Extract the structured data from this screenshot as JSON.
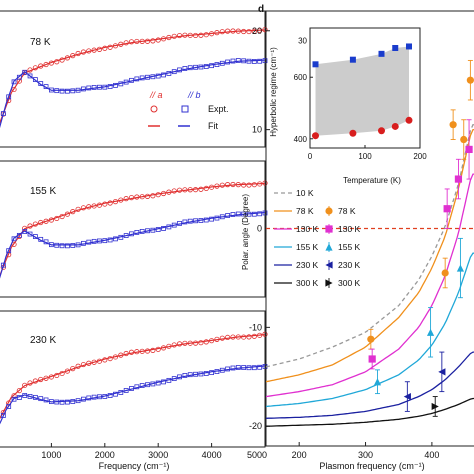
{
  "panel_d_label": "d",
  "chart_data": [
    {
      "type": "scatter",
      "panel": "left-top",
      "temperature_label": "78 K",
      "xlim": [
        0,
        5000
      ],
      "legend": {
        "a_label": "// a",
        "b_label": "// b",
        "expt_label": "Expt.",
        "fit_label": "Fit"
      },
      "series": [
        {
          "name": "// a",
          "color": "#e03030",
          "x": [
            0,
            250,
            500,
            1000,
            1500,
            2000,
            2500,
            3000,
            3500,
            4000,
            4500,
            5000
          ],
          "y": [
            0.1,
            0.4,
            0.57,
            0.66,
            0.73,
            0.79,
            0.83,
            0.86,
            0.89,
            0.91,
            0.93,
            0.94
          ]
        },
        {
          "name": "// b",
          "color": "#3030d0",
          "x": [
            0,
            150,
            300,
            500,
            800,
            1000,
            1500,
            2000,
            2500,
            3000,
            3500,
            4000,
            4500,
            5000
          ],
          "y": [
            0.05,
            0.3,
            0.5,
            0.58,
            0.47,
            0.42,
            0.42,
            0.45,
            0.5,
            0.55,
            0.6,
            0.64,
            0.67,
            0.68
          ]
        }
      ]
    },
    {
      "type": "scatter",
      "panel": "left-middle",
      "temperature_label": "155 K",
      "xlim": [
        0,
        5000
      ],
      "series": [
        {
          "name": "// a",
          "color": "#e03030",
          "x": [
            0,
            250,
            500,
            1000,
            1500,
            2000,
            2500,
            3000,
            3500,
            4000,
            4500,
            5000
          ],
          "y": [
            0.08,
            0.36,
            0.52,
            0.6,
            0.68,
            0.74,
            0.78,
            0.82,
            0.85,
            0.88,
            0.9,
            0.91
          ]
        },
        {
          "name": "// b",
          "color": "#3030d0",
          "x": [
            0,
            150,
            300,
            500,
            800,
            1000,
            1500,
            2000,
            2500,
            3000,
            3500,
            4000,
            4500,
            5000
          ],
          "y": [
            0.05,
            0.28,
            0.44,
            0.5,
            0.42,
            0.38,
            0.38,
            0.42,
            0.47,
            0.52,
            0.57,
            0.61,
            0.64,
            0.66
          ]
        }
      ]
    },
    {
      "type": "scatter",
      "panel": "left-bottom",
      "temperature_label": "230 K",
      "xlim": [
        0,
        5000
      ],
      "xticks": [
        1000,
        2000,
        3000,
        4000,
        5000
      ],
      "xlabel": "Frequency (cm⁻¹)",
      "series": [
        {
          "name": "// a",
          "color": "#e03030",
          "x": [
            0,
            250,
            500,
            1000,
            1500,
            2000,
            2500,
            3000,
            3500,
            4000,
            4500,
            5000
          ],
          "y": [
            0.15,
            0.36,
            0.46,
            0.54,
            0.62,
            0.69,
            0.74,
            0.78,
            0.82,
            0.85,
            0.88,
            0.9
          ]
        },
        {
          "name": "// b",
          "color": "#3030d0",
          "x": [
            0,
            150,
            300,
            500,
            800,
            1000,
            1500,
            2000,
            2500,
            3000,
            3500,
            4000,
            4500,
            5000
          ],
          "y": [
            0.1,
            0.25,
            0.35,
            0.38,
            0.34,
            0.32,
            0.33,
            0.37,
            0.43,
            0.49,
            0.54,
            0.58,
            0.61,
            0.63
          ]
        }
      ]
    },
    {
      "type": "scatter",
      "panel": "d-main",
      "xlabel": "Plasmon frequency (cm⁻¹)",
      "ylabel": "Polar. angle (Degree)",
      "xlim": [
        150,
        474
      ],
      "ylim": [
        -22,
        22
      ],
      "xticks": [
        200,
        300,
        400
      ],
      "yticks": [
        -20,
        -10,
        0,
        10,
        20
      ],
      "zero_line_color": "#e04020",
      "legend": {
        "placement": "center-left"
      },
      "series": [
        {
          "name": "10 K",
          "color": "#999999",
          "dashed": true,
          "x": [
            150,
            200,
            250,
            300,
            350,
            380,
            400,
            420,
            440,
            460
          ],
          "y": [
            -14,
            -13.2,
            -12,
            -10.5,
            -7.8,
            -5.2,
            -2.8,
            0.2,
            4.5,
            10.5
          ]
        },
        {
          "name": "78 K",
          "color": "#f0901c",
          "x": [
            150,
            200,
            250,
            300,
            350,
            380,
            400,
            420,
            440,
            460
          ],
          "y": [
            -15.5,
            -14.8,
            -13.8,
            -12,
            -9,
            -6.5,
            -4,
            -0.8,
            4,
            10
          ]
        },
        {
          "name": "130 K",
          "color": "#e030d0",
          "x": [
            150,
            200,
            250,
            300,
            350,
            380,
            400,
            420,
            440,
            460
          ],
          "y": [
            -17,
            -16.5,
            -15.8,
            -14.5,
            -12.2,
            -10,
            -7.8,
            -4.8,
            -0.5,
            5.5
          ]
        },
        {
          "name": "155 K",
          "color": "#20a8d8",
          "x": [
            150,
            200,
            250,
            300,
            350,
            380,
            400,
            420,
            440,
            460
          ],
          "y": [
            -18,
            -17.7,
            -17.2,
            -16.3,
            -14.8,
            -13.3,
            -11.8,
            -9.6,
            -6.5,
            -2.5
          ]
        },
        {
          "name": "230 K",
          "color": "#1a20a0",
          "x": [
            150,
            200,
            250,
            300,
            350,
            380,
            400,
            420,
            440,
            460
          ],
          "y": [
            -19.2,
            -19.1,
            -18.9,
            -18.5,
            -17.8,
            -17,
            -16.3,
            -15.3,
            -14,
            -12.5
          ]
        },
        {
          "name": "300 K",
          "color": "#111111",
          "x": [
            150,
            200,
            250,
            300,
            350,
            380,
            400,
            420,
            440,
            460
          ],
          "y": [
            -20,
            -19.9,
            -19.8,
            -19.6,
            -19.3,
            -19,
            -18.7,
            -18.3,
            -17.8,
            -17.2
          ]
        }
      ],
      "points": [
        {
          "name": "78 K",
          "color": "#f0901c",
          "marker": "circle",
          "x": [
            308,
            420,
            432,
            448,
            458
          ],
          "y": [
            -11.2,
            -4.5,
            10.5,
            9.0,
            15.0
          ],
          "err": [
            1.0,
            1.5,
            1.5,
            2.0,
            2.0
          ]
        },
        {
          "name": "130 K",
          "color": "#e030d0",
          "marker": "square",
          "x": [
            310,
            423,
            440,
            456
          ],
          "y": [
            -13.2,
            2.0,
            5.0,
            8.0
          ],
          "err": [
            1.0,
            2.0,
            2.0,
            3.0
          ]
        },
        {
          "name": "155 K",
          "color": "#20a8d8",
          "marker": "triangle-up",
          "x": [
            318,
            398,
            443
          ],
          "y": [
            -15.5,
            -10.5,
            -4.0
          ],
          "err": [
            1.2,
            2.5,
            3.0
          ]
        },
        {
          "name": "230 K",
          "color": "#1a20a0",
          "marker": "triangle-left",
          "x": [
            363,
            415
          ],
          "y": [
            -17.0,
            -14.5
          ],
          "err": [
            1.5,
            2.0
          ]
        },
        {
          "name": "300 K",
          "color": "#111111",
          "marker": "triangle-right",
          "x": [
            405
          ],
          "y": [
            -18.0
          ],
          "err": [
            1.0
          ]
        }
      ]
    },
    {
      "type": "scatter",
      "panel": "d-inset",
      "xlabel": "Temperature (K)",
      "ylabel": "Hyperbolic regime (cm⁻¹)",
      "xlim": [
        0,
        200
      ],
      "ylim": [
        370,
        760
      ],
      "xticks": [
        0,
        100,
        200
      ],
      "yticks": [
        400,
        600
      ],
      "yticklabels": [
        "400",
        "600"
      ],
      "shaded_region_color": "#cccccc",
      "series": [
        {
          "name": "upper",
          "color": "#1a3ccc",
          "marker": "square",
          "x": [
            10,
            78,
            130,
            155,
            180
          ],
          "y": [
            642,
            657,
            676,
            695,
            700
          ]
        },
        {
          "name": "lower",
          "color": "#d81e1e",
          "marker": "circle",
          "x": [
            10,
            78,
            130,
            155,
            180
          ],
          "y": [
            410,
            418,
            426,
            440,
            460
          ]
        }
      ],
      "y_top_tick_label": "30"
    }
  ]
}
